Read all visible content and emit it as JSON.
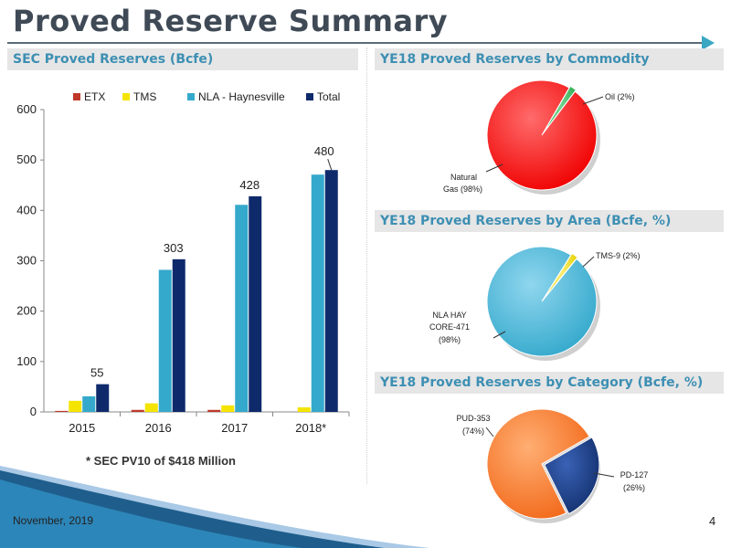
{
  "slide": {
    "title": "Proved Reserve Summary",
    "date": "November, 2019",
    "page_number": "4",
    "footnote": "* SEC PV10 of $418 Million"
  },
  "colors": {
    "accent_blue": "#3d8fb3",
    "etx": "#c0392b",
    "tms": "#f5e400",
    "nla": "#35a9cc",
    "total": "#0f2a6b",
    "gas": "#f00000",
    "oil": "#2fa84f",
    "pud": "#f26a1b",
    "pd": "#12306e"
  },
  "chart_data": [
    {
      "type": "bar",
      "title": "SEC Proved Reserves (Bcfe)",
      "categories": [
        "2015",
        "2016",
        "2017",
        "2018*"
      ],
      "series": [
        {
          "name": "ETX",
          "values": [
            2,
            4,
            4,
            0
          ]
        },
        {
          "name": "TMS",
          "values": [
            22,
            17,
            13,
            9
          ]
        },
        {
          "name": "NLA - Haynesville",
          "values": [
            31,
            282,
            411,
            471
          ]
        },
        {
          "name": "Total",
          "values": [
            55,
            303,
            428,
            480
          ]
        }
      ],
      "data_labels": [
        "55",
        "303",
        "428",
        "480"
      ],
      "y_ticks": [
        "0",
        "100",
        "200",
        "300",
        "400",
        "500",
        "600"
      ],
      "ylim": [
        0,
        600
      ],
      "legend": "top"
    },
    {
      "type": "pie",
      "title": "YE18 Proved Reserves by Commodity",
      "slices": [
        {
          "label": "Natural Gas (98%)",
          "value": 98
        },
        {
          "label": "Oil  (2%)",
          "value": 2
        }
      ]
    },
    {
      "type": "pie",
      "title": "YE18 Proved Reserves by Area (Bcfe, %)",
      "slices": [
        {
          "label": "NLA HAY CORE-471 (98%)",
          "value": 98
        },
        {
          "label": "TMS-9 (2%)",
          "value": 2
        }
      ]
    },
    {
      "type": "pie",
      "title": "YE18 Proved Reserves by Category (Bcfe, %)",
      "slices": [
        {
          "label": "PUD-353 (74%)",
          "value": 74
        },
        {
          "label": "PD-127 (26%)",
          "value": 26
        }
      ]
    }
  ],
  "pie_labels": {
    "commodity": {
      "gas_line1": "Natural",
      "gas_line2": "Gas (98%)",
      "oil": "Oil  (2%)"
    },
    "area": {
      "nla_line1": "NLA HAY",
      "nla_line2": "CORE-471",
      "nla_line3": "(98%)",
      "tms": "TMS-9 (2%)"
    },
    "category": {
      "pud_line1": "PUD-353",
      "pud_line2": "(74%)",
      "pd_line1": "PD-127",
      "pd_line2": "(26%)"
    }
  }
}
